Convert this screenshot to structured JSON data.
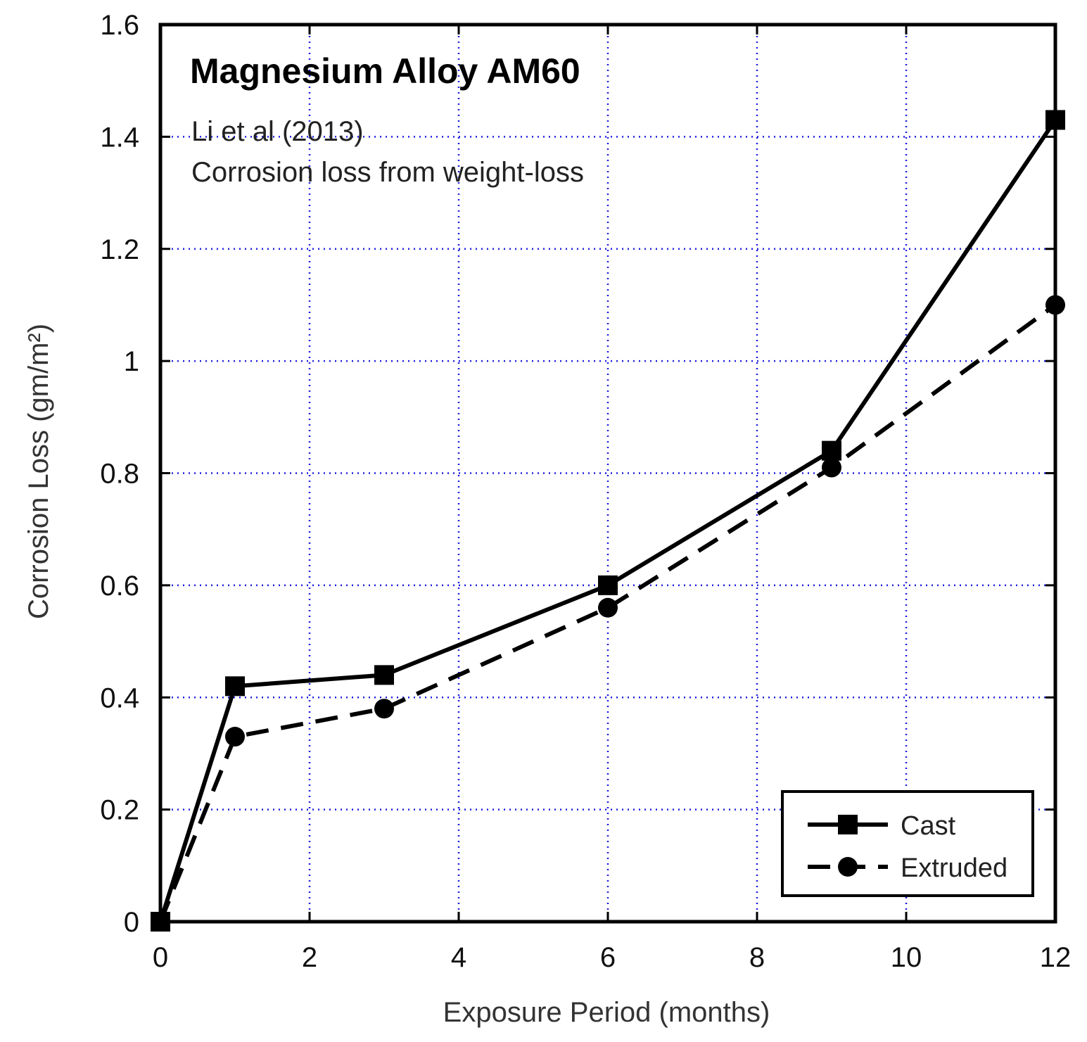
{
  "chart_data": {
    "type": "line",
    "title": "Magnesium Alloy AM60",
    "annotations": [
      "Li et al (2013)",
      "Corrosion loss from weight-loss"
    ],
    "xlabel": "Exposure Period (months)",
    "ylabel": "Corrosion Loss (gm/m²)",
    "xlim": [
      0,
      12
    ],
    "ylim": [
      0,
      1.6
    ],
    "x_ticks": [
      "0",
      "2",
      "4",
      "6",
      "8",
      "10",
      "12"
    ],
    "y_ticks": [
      "0",
      "0.2",
      "0.4",
      "0.6",
      "0.8",
      "1",
      "1.2",
      "1.4",
      "1.6"
    ],
    "grid": true,
    "legend_position": "bottom-right",
    "series": [
      {
        "name": "Cast",
        "marker": "square",
        "line": "solid",
        "x": [
          0,
          1,
          3,
          6,
          9,
          12
        ],
        "y": [
          0,
          0.42,
          0.44,
          0.6,
          0.84,
          1.43
        ]
      },
      {
        "name": "Extruded",
        "marker": "circle",
        "line": "dashed",
        "x": [
          0,
          1,
          3,
          6,
          9,
          12
        ],
        "y": [
          0,
          0.33,
          0.38,
          0.56,
          0.81,
          1.1
        ]
      }
    ]
  }
}
